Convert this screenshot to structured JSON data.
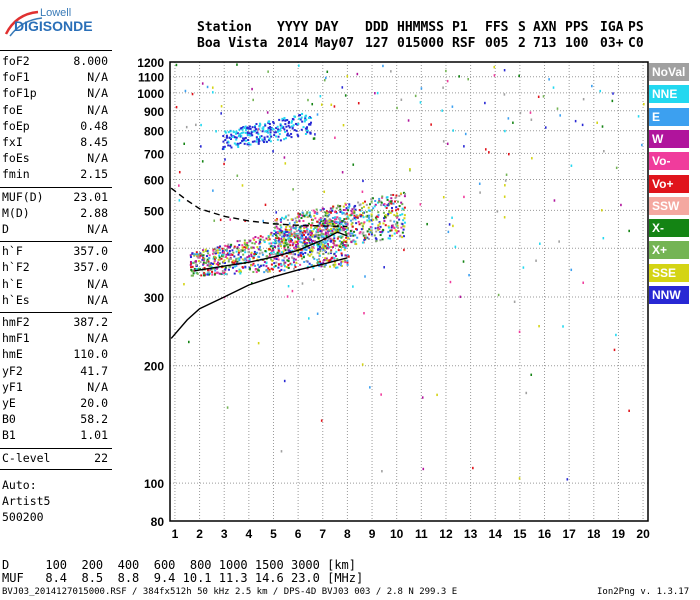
{
  "logo": {
    "line1": "Lowell",
    "line2": "DIGISONDE"
  },
  "header": {
    "labels": [
      "Station",
      "YYYY",
      "DAY",
      "DDD",
      "HHMMSS",
      "P1",
      "FFS",
      "S",
      "AXN",
      "PPS",
      "IGA",
      "PS"
    ],
    "values": [
      "Boa Vista",
      "2014",
      "May07",
      "127",
      "015000",
      "RSF",
      "005",
      "2",
      "713",
      "100",
      "03+",
      "C0"
    ]
  },
  "params": [
    {
      "label": "foF2",
      "value": "8.000"
    },
    {
      "label": "foF1",
      "value": "N/A"
    },
    {
      "label": "foF1p",
      "value": "N/A"
    },
    {
      "label": "foE",
      "value": "N/A"
    },
    {
      "label": "foEp",
      "value": "0.48"
    },
    {
      "label": "fxI",
      "value": "8.45"
    },
    {
      "label": "foEs",
      "value": "N/A"
    },
    {
      "label": "fmin",
      "value": "2.15"
    },
    {
      "label": "MUF(D)",
      "value": "23.01"
    },
    {
      "label": "M(D)",
      "value": "2.88"
    },
    {
      "label": "D",
      "value": "N/A"
    },
    {
      "label": "h`F",
      "value": "357.0"
    },
    {
      "label": "h`F2",
      "value": "357.0"
    },
    {
      "label": "h`E",
      "value": "N/A"
    },
    {
      "label": "h`Es",
      "value": "N/A"
    },
    {
      "label": "hmF2",
      "value": "387.2"
    },
    {
      "label": "hmF1",
      "value": "N/A"
    },
    {
      "label": "hmE",
      "value": "110.0"
    },
    {
      "label": "yF2",
      "value": "41.7"
    },
    {
      "label": "yF1",
      "value": "N/A"
    },
    {
      "label": "yE",
      "value": "20.0"
    },
    {
      "label": "B0",
      "value": "58.2"
    },
    {
      "label": "B1",
      "value": "1.01"
    },
    {
      "label": "C-level",
      "value": "22"
    }
  ],
  "notes": {
    "auto": "Auto:",
    "artist": "Artist5",
    "code": "500200"
  },
  "legend": [
    {
      "name": "NoVal",
      "color": "#a0a0a0"
    },
    {
      "name": "NNE",
      "color": "#22d8f0"
    },
    {
      "name": "E",
      "color": "#3ca0f0"
    },
    {
      "name": "W",
      "color": "#b0149c"
    },
    {
      "name": "Vo-",
      "color": "#f03c9c"
    },
    {
      "name": "Vo+",
      "color": "#e0141c"
    },
    {
      "name": "SSW",
      "color": "#f4a8a0"
    },
    {
      "name": "X-",
      "color": "#148414"
    },
    {
      "name": "X+",
      "color": "#74b454"
    },
    {
      "name": "SSE",
      "color": "#d4d414"
    },
    {
      "name": "NNW",
      "color": "#2828d4"
    }
  ],
  "bottom": {
    "d_row": "D     100  200  400  600  800 1000 1500 3000 [km]",
    "muf_row": "MUF   8.4  8.5  8.8  9.4 10.1 11.3 14.6 23.0 [MHz]",
    "footer_left": "BVJ03_2014127015000.RSF / 384fx512h 50 kHz 2.5 km / DPS-4D BVJ03 003 / 2.8 N 299.3 E",
    "footer_right": "Ion2Png v. 1.3.17"
  },
  "chart_data": {
    "type": "scatter",
    "title": "",
    "xlabel": "",
    "ylabel": "",
    "xlim": [
      0.8,
      20.2
    ],
    "ylim": [
      80,
      1200
    ],
    "x_ticks": [
      1,
      2,
      3,
      4,
      5,
      6,
      7,
      8,
      9,
      10,
      11,
      12,
      13,
      14,
      15,
      16,
      17,
      18,
      19,
      20
    ],
    "y_ticks": [
      80,
      100,
      200,
      300,
      400,
      500,
      600,
      700,
      800,
      900,
      1000,
      1100,
      1200
    ],
    "y_scale": "log",
    "grid": true,
    "echo_clusters": [
      {
        "name": "F2 trace o-mode",
        "x_range": [
          1.6,
          8.0
        ],
        "y_range": [
          340,
          480
        ]
      },
      {
        "name": "F2 spread",
        "x_range": [
          5.0,
          10.3
        ],
        "y_range": [
          380,
          680
        ]
      },
      {
        "name": "F2 multi-hop",
        "x_range": [
          2.9,
          6.5
        ],
        "y_range": [
          720,
          900
        ]
      }
    ],
    "profile_curves": [
      {
        "name": "virtual-height fit",
        "points": [
          [
            1.8,
            350
          ],
          [
            3,
            360
          ],
          [
            4,
            368
          ],
          [
            5,
            380
          ],
          [
            6,
            395
          ],
          [
            7,
            420
          ],
          [
            7.6,
            440
          ],
          [
            8,
            430
          ]
        ]
      },
      {
        "name": "true-height profile",
        "points": [
          [
            0.85,
            235
          ],
          [
            1.5,
            262
          ],
          [
            2,
            280
          ],
          [
            3,
            300
          ],
          [
            4,
            322
          ],
          [
            5,
            338
          ],
          [
            6,
            352
          ],
          [
            7,
            364
          ],
          [
            8,
            378
          ]
        ]
      },
      {
        "name": "extrapolated topside",
        "style": "dashed",
        "points": [
          [
            0.85,
            570
          ],
          [
            1.5,
            530
          ],
          [
            2,
            505
          ],
          [
            3,
            483
          ],
          [
            4,
            470
          ],
          [
            5,
            462
          ],
          [
            6,
            458
          ],
          [
            7,
            456
          ],
          [
            8,
            455
          ]
        ]
      }
    ]
  }
}
